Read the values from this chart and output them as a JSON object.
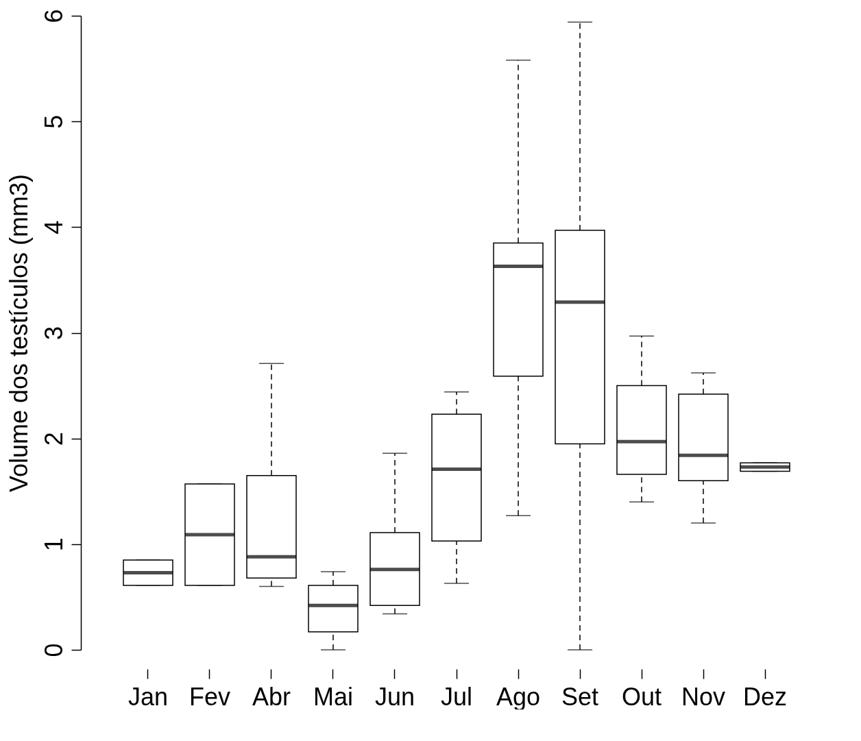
{
  "chart_data": {
    "type": "box",
    "ylabel": "Volume dos testículos (mm3)",
    "categories": [
      "Jan",
      "Fev",
      "Abr",
      "Mai",
      "Jun",
      "Jul",
      "Ago",
      "Set",
      "Out",
      "Nov",
      "Dez"
    ],
    "boxes": [
      {
        "low": 0.61,
        "q1": 0.61,
        "median": 0.73,
        "q3": 0.85,
        "high": 0.85
      },
      {
        "low": 0.61,
        "q1": 0.61,
        "median": 1.09,
        "q3": 1.57,
        "high": 1.57
      },
      {
        "low": 0.6,
        "q1": 0.68,
        "median": 0.88,
        "q3": 1.65,
        "high": 2.71
      },
      {
        "low": 0,
        "q1": 0.17,
        "median": 0.42,
        "q3": 0.61,
        "high": 0.74
      },
      {
        "low": 0.34,
        "q1": 0.42,
        "median": 0.76,
        "q3": 1.11,
        "high": 1.86
      },
      {
        "low": 0.63,
        "q1": 1.03,
        "median": 1.71,
        "q3": 2.23,
        "high": 2.44
      },
      {
        "low": 1.27,
        "q1": 2.59,
        "median": 3.63,
        "q3": 3.85,
        "high": 5.58
      },
      {
        "low": 0,
        "q1": 1.95,
        "median": 3.29,
        "q3": 3.97,
        "high": 5.94
      },
      {
        "low": 1.4,
        "q1": 1.66,
        "median": 1.97,
        "q3": 2.5,
        "high": 2.97
      },
      {
        "low": 1.2,
        "q1": 1.6,
        "median": 1.84,
        "q3": 2.42,
        "high": 2.62
      },
      {
        "low": 1.69,
        "q1": 1.69,
        "median": 1.73,
        "q3": 1.77,
        "high": 1.77
      }
    ],
    "ylim": [
      0,
      6
    ],
    "yticks": [
      0,
      1,
      2,
      3,
      4,
      5,
      6
    ]
  }
}
